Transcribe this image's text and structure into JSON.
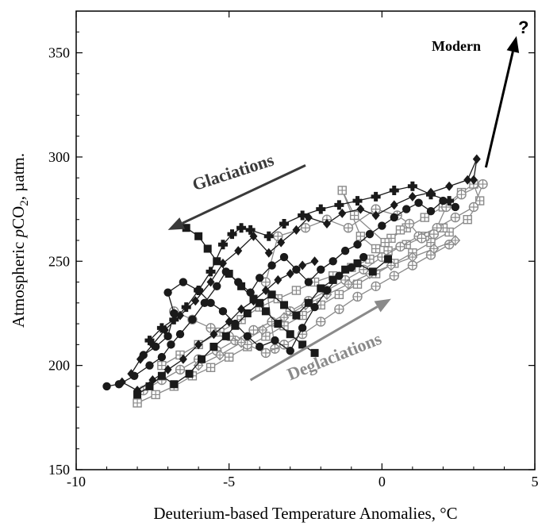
{
  "chart_data": {
    "type": "scatter",
    "title": "",
    "xlabel": "Deuterium-based Temperature Anomalies, °C",
    "ylabel_parts": [
      "Atmospheric ",
      "p",
      "CO",
      "2",
      ", µatm."
    ],
    "xlim": [
      -10,
      5
    ],
    "ylim": [
      150,
      370
    ],
    "xticks": [
      -10,
      -5,
      0,
      5
    ],
    "yticks": [
      150,
      200,
      250,
      300,
      350
    ],
    "grid": false,
    "colors": {
      "dark": "#1a1a1a",
      "gray": "#8a8a8a",
      "arrow_dark": "#3a3a3a",
      "arrow_gray": "#8a8a8a"
    },
    "annotations": {
      "glaciations": "Glaciations",
      "deglaciations": "Deglaciations",
      "modern": "Modern",
      "question": "?"
    },
    "arrows": [
      {
        "label": "Glaciations",
        "from": [
          -2.5,
          296
        ],
        "to": [
          -7,
          265
        ],
        "color": "#3a3a3a"
      },
      {
        "label": "Deglaciations",
        "from": [
          -4.3,
          193
        ],
        "to": [
          0.3,
          232
        ],
        "color": "#8a8a8a"
      },
      {
        "label": "Modern",
        "from": [
          3.4,
          295
        ],
        "to": [
          4.4,
          358
        ],
        "color": "#000000"
      }
    ],
    "series": [
      {
        "marker": "circle",
        "color": "#1a1a1a",
        "points": [
          [
            -9,
            190
          ],
          [
            -8.6,
            191
          ],
          [
            -8.1,
            195
          ],
          [
            -7.6,
            200
          ],
          [
            -7.2,
            204
          ],
          [
            -6.9,
            210
          ],
          [
            -6.6,
            215
          ],
          [
            -6.2,
            222
          ],
          [
            -5.8,
            230
          ],
          [
            -5.4,
            238
          ],
          [
            -5.1,
            245
          ],
          [
            -4.7,
            240
          ],
          [
            -4.3,
            235
          ],
          [
            -4.0,
            242
          ],
          [
            -3.6,
            248
          ],
          [
            -3.2,
            252
          ],
          [
            -2.8,
            246
          ],
          [
            -2.4,
            240
          ],
          [
            -2.0,
            246
          ],
          [
            -1.6,
            250
          ],
          [
            -1.2,
            255
          ],
          [
            -0.8,
            258
          ],
          [
            -0.4,
            263
          ],
          [
            0,
            267
          ],
          [
            0.4,
            271
          ],
          [
            0.8,
            275
          ],
          [
            1.2,
            278
          ],
          [
            1.6,
            274
          ],
          [
            2.0,
            279
          ],
          [
            2.4,
            276
          ]
        ]
      },
      {
        "marker": "circle",
        "color": "#1a1a1a",
        "points": [
          [
            -7.8,
            205
          ],
          [
            -7.4,
            209
          ],
          [
            -7.0,
            214
          ],
          [
            -6.8,
            225
          ],
          [
            -7.0,
            235
          ],
          [
            -6.5,
            240
          ],
          [
            -6.0,
            236
          ],
          [
            -5.6,
            230
          ],
          [
            -5.2,
            226
          ],
          [
            -4.8,
            220
          ],
          [
            -4.4,
            214
          ],
          [
            -4.0,
            209
          ],
          [
            -3.5,
            212
          ],
          [
            -3.0,
            207
          ],
          [
            -2.6,
            218
          ],
          [
            -2.2,
            228
          ],
          [
            -1.8,
            236
          ],
          [
            -1.4,
            243
          ],
          [
            -1.0,
            247
          ],
          [
            -0.6,
            252
          ]
        ]
      },
      {
        "marker": "diamond",
        "color": "#1a1a1a",
        "points": [
          [
            -8.2,
            196
          ],
          [
            -7.9,
            203
          ],
          [
            -7.5,
            210
          ],
          [
            -7.1,
            217
          ],
          [
            -6.6,
            224
          ],
          [
            -6.1,
            231
          ],
          [
            -5.6,
            240
          ],
          [
            -5.2,
            249
          ],
          [
            -4.7,
            255
          ],
          [
            -4.2,
            262
          ],
          [
            -3.7,
            254
          ],
          [
            -3.3,
            259
          ],
          [
            -2.8,
            265
          ],
          [
            -2.4,
            271
          ],
          [
            -1.8,
            268
          ],
          [
            -1.3,
            273
          ],
          [
            -0.7,
            275
          ],
          [
            -0.2,
            272
          ],
          [
            0.4,
            277
          ],
          [
            1.0,
            281
          ],
          [
            1.6,
            283
          ],
          [
            2.2,
            286
          ],
          [
            2.8,
            289
          ],
          [
            3.1,
            299
          ],
          [
            3.0,
            289
          ]
        ]
      },
      {
        "marker": "diamond",
        "color": "#1a1a1a",
        "points": [
          [
            -8.5,
            192
          ],
          [
            -8.0,
            188
          ],
          [
            -7.5,
            193
          ],
          [
            -7.0,
            198
          ],
          [
            -6.5,
            203
          ],
          [
            -6.0,
            210
          ],
          [
            -5.5,
            215
          ],
          [
            -5.0,
            221
          ],
          [
            -4.6,
            227
          ],
          [
            -4.2,
            231
          ],
          [
            -3.8,
            236
          ],
          [
            -3.4,
            241
          ],
          [
            -3.0,
            244
          ],
          [
            -2.6,
            248
          ],
          [
            -2.2,
            250
          ]
        ]
      },
      {
        "marker": "square",
        "color": "#1a1a1a",
        "points": [
          [
            -8.0,
            186
          ],
          [
            -7.6,
            190
          ],
          [
            -7.2,
            195
          ],
          [
            -6.8,
            191
          ],
          [
            -6.3,
            196
          ],
          [
            -5.9,
            203
          ],
          [
            -5.5,
            209
          ],
          [
            -5.1,
            214
          ],
          [
            -4.8,
            219
          ],
          [
            -4.4,
            225
          ],
          [
            -4.0,
            230
          ],
          [
            -3.6,
            234
          ],
          [
            -3.2,
            229
          ],
          [
            -2.8,
            224
          ],
          [
            -2.4,
            230
          ],
          [
            -2.0,
            237
          ],
          [
            -1.6,
            241
          ],
          [
            -1.2,
            246
          ],
          [
            -0.8,
            249
          ],
          [
            -0.3,
            245
          ],
          [
            0.2,
            251
          ]
        ]
      },
      {
        "marker": "square",
        "color": "#1a1a1a",
        "points": [
          [
            -6.4,
            266
          ],
          [
            -6.0,
            262
          ],
          [
            -5.7,
            256
          ],
          [
            -5.4,
            250
          ],
          [
            -5.0,
            244
          ],
          [
            -4.6,
            238
          ],
          [
            -4.2,
            232
          ],
          [
            -3.8,
            226
          ],
          [
            -3.4,
            220
          ],
          [
            -3.0,
            215
          ],
          [
            -2.6,
            210
          ],
          [
            -2.2,
            206
          ]
        ]
      },
      {
        "marker": "plus",
        "color": "#1a1a1a",
        "points": [
          [
            -7.6,
            212
          ],
          [
            -7.2,
            218
          ],
          [
            -6.8,
            222
          ],
          [
            -6.4,
            228
          ],
          [
            -6.0,
            236
          ],
          [
            -5.6,
            245
          ],
          [
            -5.2,
            258
          ],
          [
            -4.9,
            263
          ],
          [
            -4.6,
            266
          ],
          [
            -4.3,
            265
          ],
          [
            -3.7,
            262
          ],
          [
            -3.2,
            268
          ],
          [
            -2.6,
            272
          ],
          [
            -2.0,
            275
          ],
          [
            -1.4,
            277
          ],
          [
            -0.8,
            279
          ],
          [
            -0.2,
            281
          ],
          [
            0.4,
            284
          ],
          [
            1.0,
            286
          ],
          [
            1.6,
            282
          ],
          [
            2.2,
            279
          ]
        ]
      },
      {
        "marker": "sqcross",
        "color": "#8a8a8a",
        "points": [
          [
            -8.0,
            182
          ],
          [
            -7.4,
            186
          ],
          [
            -6.8,
            190
          ],
          [
            -6.2,
            195
          ],
          [
            -5.6,
            199
          ],
          [
            -5.0,
            204
          ],
          [
            -4.4,
            209
          ],
          [
            -3.8,
            214
          ],
          [
            -3.2,
            219
          ],
          [
            -2.6,
            224
          ],
          [
            -2.0,
            229
          ],
          [
            -1.4,
            234
          ],
          [
            -0.8,
            239
          ],
          [
            -0.2,
            244
          ],
          [
            0.4,
            249
          ],
          [
            1.0,
            254
          ],
          [
            1.6,
            259
          ],
          [
            2.2,
            264
          ],
          [
            2.8,
            270
          ],
          [
            3.2,
            279
          ],
          [
            3.0,
            287
          ],
          [
            2.6,
            283
          ],
          [
            2.0,
            276
          ],
          [
            1.4,
            271
          ],
          [
            0.8,
            266
          ],
          [
            0.3,
            261
          ],
          [
            -0.2,
            256
          ],
          [
            -0.7,
            262
          ],
          [
            -1.3,
            284
          ],
          [
            -0.9,
            272
          ],
          [
            0.1,
            259
          ],
          [
            0.6,
            265
          ]
        ]
      },
      {
        "marker": "sqcross",
        "color": "#8a8a8a",
        "points": [
          [
            -7.2,
            200
          ],
          [
            -6.6,
            205
          ],
          [
            -6.0,
            210
          ],
          [
            -5.3,
            216
          ],
          [
            -4.6,
            222
          ],
          [
            -4.0,
            228
          ],
          [
            -3.4,
            232
          ],
          [
            -2.8,
            236
          ],
          [
            -2.2,
            240
          ],
          [
            -1.6,
            243
          ],
          [
            -1.0,
            247
          ],
          [
            -0.4,
            251
          ],
          [
            0.2,
            255
          ],
          [
            0.8,
            258
          ],
          [
            1.4,
            262
          ],
          [
            2.0,
            266
          ]
        ]
      },
      {
        "marker": "circcross",
        "color": "#8a8a8a",
        "points": [
          [
            -7.8,
            188
          ],
          [
            -7.2,
            193
          ],
          [
            -6.6,
            198
          ],
          [
            -6.0,
            203
          ],
          [
            -5.4,
            207
          ],
          [
            -4.8,
            212
          ],
          [
            -4.2,
            217
          ],
          [
            -3.6,
            221
          ],
          [
            -3.0,
            226
          ],
          [
            -2.4,
            231
          ],
          [
            -1.8,
            236
          ],
          [
            -1.2,
            241
          ],
          [
            -0.6,
            246
          ],
          [
            0,
            252
          ],
          [
            0.6,
            257
          ],
          [
            1.2,
            262
          ],
          [
            1.8,
            266
          ],
          [
            2.4,
            271
          ],
          [
            3.0,
            276
          ],
          [
            3.3,
            287
          ],
          [
            2.6,
            282
          ],
          [
            2.1,
            276
          ],
          [
            1.7,
            263
          ],
          [
            1.3,
            261
          ],
          [
            0.9,
            268
          ],
          [
            0.5,
            272
          ],
          [
            -0.2,
            275
          ],
          [
            -1.1,
            266
          ],
          [
            -1.8,
            270
          ],
          [
            -2.5,
            266
          ],
          [
            -3.4,
            262
          ],
          [
            -3.8,
            240
          ],
          [
            -3.5,
            208
          ]
        ]
      },
      {
        "marker": "circcross",
        "color": "#8a8a8a",
        "points": [
          [
            -6.8,
            226
          ],
          [
            -6.2,
            222
          ],
          [
            -5.6,
            218
          ],
          [
            -5.0,
            214
          ],
          [
            -4.4,
            210
          ],
          [
            -3.8,
            206
          ],
          [
            -3.2,
            210
          ],
          [
            -2.6,
            215
          ],
          [
            -2.0,
            221
          ],
          [
            -1.4,
            227
          ],
          [
            -0.8,
            233
          ],
          [
            -0.2,
            238
          ],
          [
            0.4,
            243
          ],
          [
            1.0,
            248
          ],
          [
            1.6,
            253
          ],
          [
            2.2,
            258
          ]
        ]
      },
      {
        "marker": "diamondcross",
        "color": "#8a8a8a",
        "points": [
          [
            -6.0,
            200
          ],
          [
            -5.3,
            205
          ],
          [
            -4.6,
            211
          ],
          [
            -3.9,
            217
          ],
          [
            -3.2,
            223
          ],
          [
            -2.5,
            229
          ],
          [
            -1.8,
            234
          ],
          [
            -1.1,
            239
          ],
          [
            -0.4,
            244
          ],
          [
            0.3,
            248
          ],
          [
            1.0,
            252
          ],
          [
            1.7,
            256
          ],
          [
            2.4,
            260
          ]
        ]
      }
    ]
  }
}
